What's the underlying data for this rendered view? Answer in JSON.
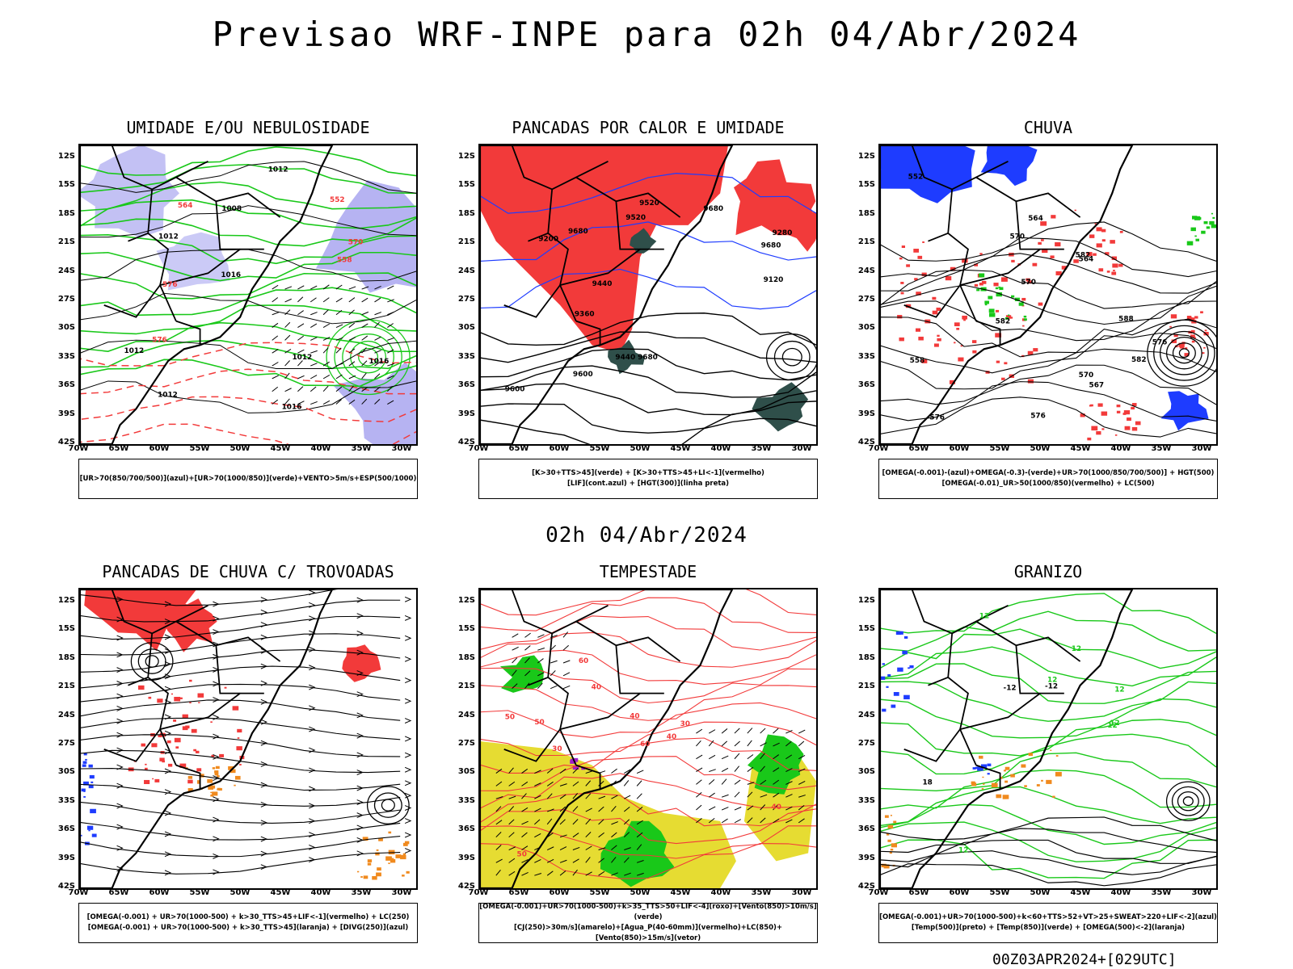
{
  "header": {
    "title": "Previsao WRF-INPE  para 02h 04/Abr/2024",
    "mid_title": "02h 04/Abr/2024",
    "footer": "00Z03APR2024+[029UTC]"
  },
  "axes": {
    "lat_labels": [
      "12S",
      "15S",
      "18S",
      "21S",
      "24S",
      "27S",
      "30S",
      "33S",
      "36S",
      "39S",
      "42S"
    ],
    "lon_labels": [
      "70W",
      "65W",
      "60W",
      "55W",
      "50W",
      "45W",
      "40W",
      "35W",
      "30W"
    ]
  },
  "colors": {
    "red": "#f23a3a",
    "green": "#19c819",
    "blue": "#1e3cff",
    "lavender": "#a9a6f0",
    "yellow": "#e6dc32",
    "orange": "#f08a1e",
    "darkgreen": "#2f4f4a",
    "purple": "#a020c8"
  },
  "panels": [
    {
      "title": "UMIDADE E/OU NEBULOSIDADE",
      "legend": [
        "[UR>70(850/700/500)](azul)+[UR>70(1000/850)](verde)+VENTO>5m/s+ESP(500/1000)"
      ],
      "contour_labels": [
        "1012",
        "1012",
        "1012",
        "1012",
        "1016",
        "1016",
        "1016",
        "1012",
        "576",
        "576",
        "570",
        "564",
        "558",
        "552",
        "1008"
      ]
    },
    {
      "title": "PANCADAS POR CALOR E UMIDADE",
      "legend": [
        "[K>30+TTS>45](verde) + [K>30+TTS>45+LI<-1](vermelho)",
        "[LIF](cont.azul) + [HGT(300)](linha preta)"
      ],
      "contour_labels": [
        "9680",
        "9680",
        "9680",
        "9680",
        "9600",
        "9600",
        "9520",
        "9520",
        "9440",
        "9440",
        "9360",
        "9280",
        "9200",
        "9120"
      ]
    },
    {
      "title": "CHUVA",
      "legend": [
        "[OMEGA(-0.001)-(azul)+OMEGA(-0.3)-(verde)+UR>70(1000/850/700/500)] + HGT(500)",
        "[OMEGA(-0.01)_UR>50(1000/850)(vermelho) + LC(500)"
      ],
      "contour_labels": [
        "588",
        "582",
        "582",
        "582",
        "576",
        "576",
        "576",
        "570",
        "570",
        "570",
        "567",
        "564",
        "564",
        "558",
        "552"
      ]
    },
    {
      "title": "PANCADAS DE CHUVA C/ TROVOADAS",
      "legend": [
        "[OMEGA(-0.001) + UR>70(1000-500) + k>30_TTS>45+LIF<-1](vermelho) + LC(250)",
        "[OMEGA(-0.001) + UR>70(1000-500) + k>30_TTS>45](laranja) + [DIVG(250)](azul)"
      ],
      "contour_labels": []
    },
    {
      "title": "TEMPESTADE",
      "legend": [
        "[OMEGA(-0.001)+UR>70(1000-500)+k>35_TTS>50+LIF<-4](roxo)+[Vento(850)>10m/s](verde)",
        "[CJ(250)>30m/s](amarelo)+[Agua_P(40-60mm)](vermelho)+LC(850)+[Vento(850)>15m/s](vetor)"
      ],
      "contour_labels": [
        "40",
        "40",
        "40",
        "50",
        "50",
        "60",
        "60",
        "30",
        "30",
        "50",
        "40"
      ]
    },
    {
      "title": "GRANIZO",
      "legend": [
        "[OMEGA(-0.001)+UR>70(1000-500)+k<60+TTS>52+VT>25+SWEAT>220+LIF<-2](azul)",
        "[Temp(500)](preto) + [Temp(850)](verde) + [OMEGA(500)<-2](laranja)"
      ],
      "contour_labels": [
        "12",
        "12",
        "12",
        "12",
        "12",
        "-12",
        "-12",
        "18",
        "12",
        "12"
      ]
    }
  ]
}
